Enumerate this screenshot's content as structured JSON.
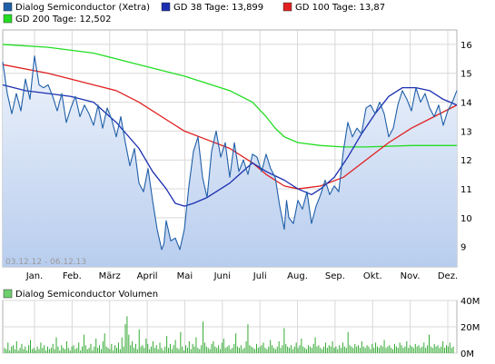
{
  "chart_data": [
    {
      "type": "line",
      "legend": [
        {
          "label": "Dialog Semiconductor (Xetra)",
          "color": "#1f5fa8"
        },
        {
          "label": "GD 38 Tage: 13,899",
          "color": "#1b2fb0"
        },
        {
          "label": "GD 100 Tage: 13,87",
          "color": "#e02020"
        },
        {
          "label": "GD 200 Tage: 12,502",
          "color": "#22dd22"
        }
      ],
      "date_range_label": "03.12.12 - 06.12.13",
      "x_tick_labels": [
        "Jan.",
        "Feb.",
        "März",
        "April",
        "Mai",
        "Juni",
        "Juli",
        "Aug.",
        "Sep.",
        "Okt.",
        "Nov.",
        "Dez."
      ],
      "y_ticks": [
        9,
        10,
        11,
        12,
        13,
        14,
        15,
        16
      ],
      "ylim": [
        8.3,
        16.5
      ],
      "grid": true,
      "x_domain": [
        0,
        1
      ],
      "series": [
        {
          "name": "Dialog Semiconductor (Xetra)",
          "color": "#1f5fa8",
          "x": [
            0.0,
            0.01,
            0.02,
            0.03,
            0.04,
            0.05,
            0.06,
            0.07,
            0.08,
            0.09,
            0.1,
            0.11,
            0.12,
            0.13,
            0.14,
            0.15,
            0.16,
            0.17,
            0.18,
            0.19,
            0.2,
            0.21,
            0.22,
            0.23,
            0.24,
            0.25,
            0.26,
            0.27,
            0.28,
            0.29,
            0.3,
            0.31,
            0.32,
            0.33,
            0.34,
            0.35,
            0.355,
            0.36,
            0.37,
            0.38,
            0.39,
            0.4,
            0.41,
            0.42,
            0.43,
            0.44,
            0.45,
            0.46,
            0.47,
            0.48,
            0.49,
            0.5,
            0.51,
            0.52,
            0.53,
            0.54,
            0.55,
            0.56,
            0.57,
            0.58,
            0.59,
            0.6,
            0.61,
            0.62,
            0.625,
            0.63,
            0.64,
            0.65,
            0.66,
            0.67,
            0.68,
            0.69,
            0.7,
            0.71,
            0.72,
            0.73,
            0.74,
            0.75,
            0.76,
            0.77,
            0.78,
            0.79,
            0.8,
            0.81,
            0.82,
            0.83,
            0.84,
            0.85,
            0.86,
            0.87,
            0.88,
            0.89,
            0.9,
            0.91,
            0.92,
            0.93,
            0.94,
            0.95,
            0.96,
            0.97,
            0.98,
            0.99,
            1.0
          ],
          "y": [
            15.4,
            14.3,
            13.6,
            14.3,
            13.7,
            14.8,
            14.1,
            15.6,
            14.6,
            14.5,
            14.6,
            14.2,
            13.7,
            14.3,
            13.3,
            13.8,
            14.2,
            13.5,
            13.9,
            13.6,
            13.2,
            13.9,
            13.1,
            13.8,
            13.4,
            12.8,
            13.5,
            12.6,
            11.8,
            12.4,
            11.2,
            10.9,
            11.7,
            10.6,
            9.6,
            8.9,
            9.1,
            9.9,
            9.2,
            9.3,
            8.9,
            9.6,
            11.1,
            12.3,
            12.8,
            11.4,
            10.7,
            12.3,
            13.0,
            12.1,
            12.6,
            11.4,
            12.6,
            11.6,
            12.0,
            11.5,
            12.2,
            12.1,
            11.6,
            12.2,
            11.7,
            11.4,
            10.4,
            9.6,
            10.6,
            10.0,
            9.8,
            10.6,
            10.3,
            10.9,
            9.8,
            10.4,
            10.8,
            11.3,
            10.8,
            11.1,
            10.9,
            12.3,
            13.3,
            12.8,
            13.1,
            12.9,
            13.8,
            13.9,
            13.6,
            14.0,
            13.6,
            12.8,
            13.1,
            13.9,
            14.4,
            14.1,
            13.7,
            14.5,
            14.0,
            14.3,
            13.8,
            13.5,
            13.9,
            13.2,
            13.7,
            14.0,
            14.4
          ]
        },
        {
          "name": "GD 38 Tage: 13,899",
          "color": "#1b2fb0",
          "x": [
            0.0,
            0.05,
            0.1,
            0.15,
            0.2,
            0.25,
            0.3,
            0.33,
            0.36,
            0.38,
            0.4,
            0.42,
            0.45,
            0.5,
            0.55,
            0.58,
            0.62,
            0.65,
            0.68,
            0.7,
            0.73,
            0.76,
            0.79,
            0.82,
            0.85,
            0.88,
            0.91,
            0.94,
            0.97,
            1.0
          ],
          "y": [
            14.6,
            14.4,
            14.3,
            14.2,
            14.0,
            13.3,
            12.4,
            11.6,
            11.0,
            10.5,
            10.4,
            10.5,
            10.7,
            11.2,
            11.9,
            11.6,
            11.3,
            11.0,
            10.8,
            11.0,
            11.4,
            12.1,
            12.9,
            13.6,
            14.2,
            14.5,
            14.5,
            14.4,
            14.1,
            13.9
          ]
        },
        {
          "name": "GD 100 Tage: 13,87",
          "color": "#e02020",
          "x": [
            0.0,
            0.1,
            0.2,
            0.25,
            0.3,
            0.35,
            0.4,
            0.45,
            0.5,
            0.55,
            0.58,
            0.62,
            0.65,
            0.7,
            0.75,
            0.8,
            0.85,
            0.9,
            0.95,
            1.0
          ],
          "y": [
            15.3,
            15.0,
            14.6,
            14.4,
            14.0,
            13.5,
            13.0,
            12.7,
            12.4,
            11.9,
            11.5,
            11.1,
            11.0,
            11.1,
            11.4,
            12.0,
            12.6,
            13.1,
            13.5,
            13.9
          ]
        },
        {
          "name": "GD 200 Tage: 12,502",
          "color": "#22dd22",
          "x": [
            0.0,
            0.1,
            0.2,
            0.3,
            0.4,
            0.5,
            0.55,
            0.58,
            0.6,
            0.62,
            0.65,
            0.7,
            0.75,
            0.8,
            0.9,
            1.0
          ],
          "y": [
            16.0,
            15.9,
            15.7,
            15.3,
            14.9,
            14.4,
            14.0,
            13.5,
            13.1,
            12.8,
            12.6,
            12.5,
            12.45,
            12.45,
            12.5,
            12.5
          ]
        }
      ]
    },
    {
      "type": "bar",
      "legend": [
        {
          "label": "Dialog Semiconductor Volumen",
          "color": "#6fcf6f"
        }
      ],
      "y_tick_labels": [
        "0M",
        "20M",
        "40M"
      ],
      "y_ticks": [
        0,
        20,
        40
      ],
      "ylim": [
        0,
        40
      ],
      "series": [
        {
          "name": "Dialog Semiconductor Volumen",
          "color": "#33aa33",
          "values": [
            4,
            3,
            8,
            2,
            5,
            6,
            3,
            9,
            2,
            4,
            7,
            3,
            5,
            2,
            6,
            10,
            3,
            4,
            2,
            5,
            3,
            8,
            4,
            6,
            2,
            5,
            3,
            4,
            7,
            3,
            12,
            5,
            2,
            6,
            4,
            3,
            9,
            4,
            2,
            5,
            6,
            3,
            4,
            8,
            2,
            5,
            14,
            6,
            3,
            4,
            7,
            2,
            5,
            11,
            4,
            6,
            3,
            9,
            15,
            5,
            4,
            3,
            7,
            2,
            6,
            4,
            8,
            3,
            12,
            5,
            22,
            28,
            14,
            6,
            9,
            4,
            7,
            3,
            18,
            5,
            6,
            4,
            11,
            7,
            3,
            5,
            9,
            4,
            6,
            3,
            8,
            4,
            2,
            5,
            13,
            4,
            7,
            3,
            6,
            10,
            4,
            3,
            16,
            5,
            2,
            6,
            4,
            9,
            3,
            7,
            5,
            12,
            4,
            3,
            6,
            24,
            8,
            5,
            4,
            3,
            7,
            9,
            5,
            4,
            6,
            3,
            8,
            11,
            4,
            5,
            6,
            3,
            4,
            7,
            15,
            5,
            4,
            6,
            3,
            4,
            9,
            22,
            6,
            5,
            4,
            3,
            7,
            4,
            5,
            6,
            8,
            4,
            3,
            5,
            10,
            6,
            4,
            3,
            5,
            9,
            4,
            6,
            19,
            7,
            5,
            4,
            6,
            3,
            5,
            8,
            4,
            6,
            11,
            5,
            4,
            3,
            6,
            5,
            4,
            7,
            12,
            5,
            6,
            4,
            3,
            5,
            8,
            4,
            6,
            5,
            9,
            4,
            5,
            3,
            6,
            4,
            8,
            5,
            4,
            16,
            6,
            5,
            4,
            7,
            5,
            6,
            4,
            9,
            5,
            4,
            6,
            5,
            3,
            7,
            4,
            8,
            5,
            4,
            6,
            5,
            10,
            4,
            5,
            6,
            4,
            3,
            7,
            5,
            4,
            8,
            6,
            4,
            5,
            9,
            4,
            6,
            5,
            4,
            7,
            5,
            6,
            4,
            5,
            8,
            4,
            6,
            14,
            5,
            4,
            7,
            5,
            6,
            4,
            5,
            9,
            4,
            6,
            5,
            8,
            4,
            5
          ]
        }
      ]
    }
  ]
}
